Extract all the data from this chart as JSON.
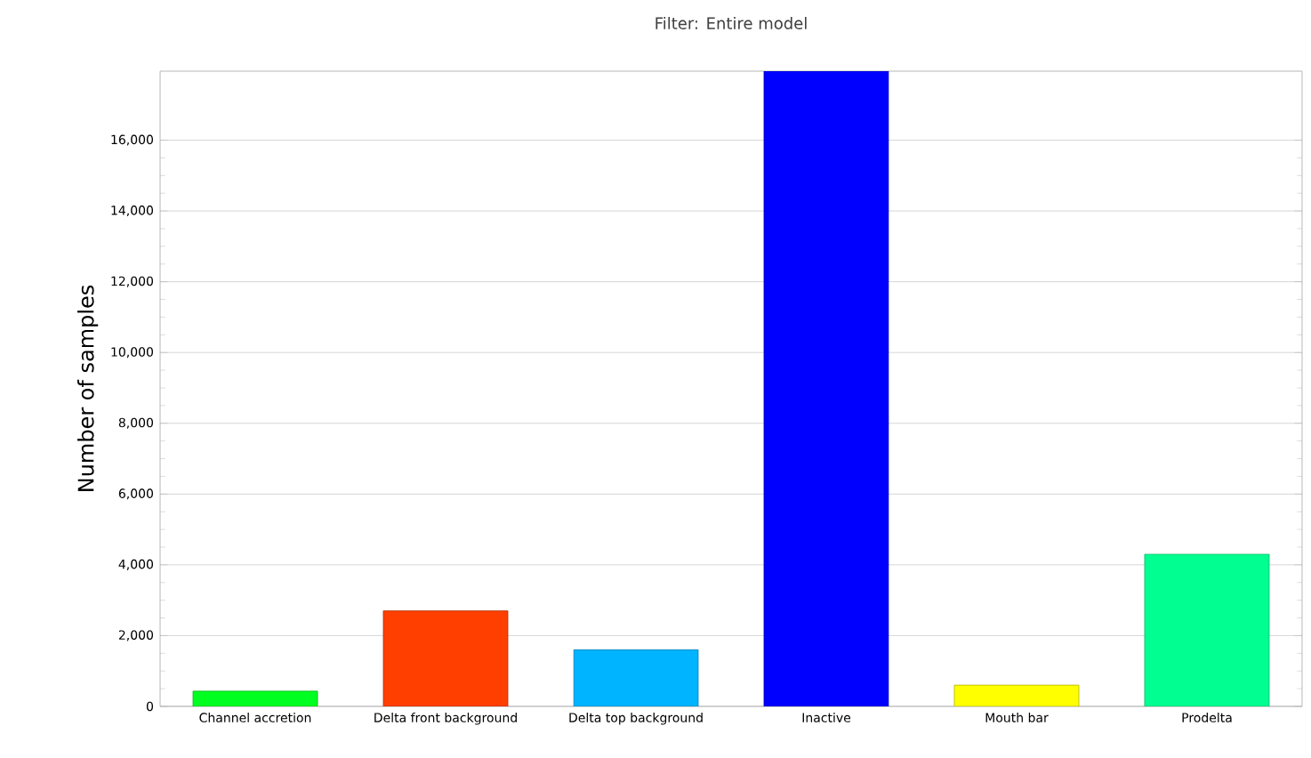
{
  "chart_data": {
    "type": "bar",
    "title": "Filter: Entire model",
    "ylabel": "Number of samples",
    "categories": [
      "Channel accretion",
      "Delta front background",
      "Delta top background",
      "Inactive",
      "Mouth bar",
      "Prodelta"
    ],
    "values": [
      430,
      2700,
      1600,
      17950,
      600,
      4300
    ],
    "colors": [
      "#00ff21",
      "#ff3f00",
      "#00b4ff",
      "#0000ff",
      "#ffff00",
      "#00ff90"
    ],
    "ylim": [
      0,
      17950
    ],
    "yticks": [
      {
        "value": 0,
        "label": "0"
      },
      {
        "value": 2000,
        "label": "2,000"
      },
      {
        "value": 4000,
        "label": "4,000"
      },
      {
        "value": 6000,
        "label": "6,000"
      },
      {
        "value": 8000,
        "label": "8,000"
      },
      {
        "value": 10000,
        "label": "10,000"
      },
      {
        "value": 12000,
        "label": "12,000"
      },
      {
        "value": 14000,
        "label": "14,000"
      },
      {
        "value": 16000,
        "label": "16,000"
      }
    ],
    "grid": "y"
  }
}
